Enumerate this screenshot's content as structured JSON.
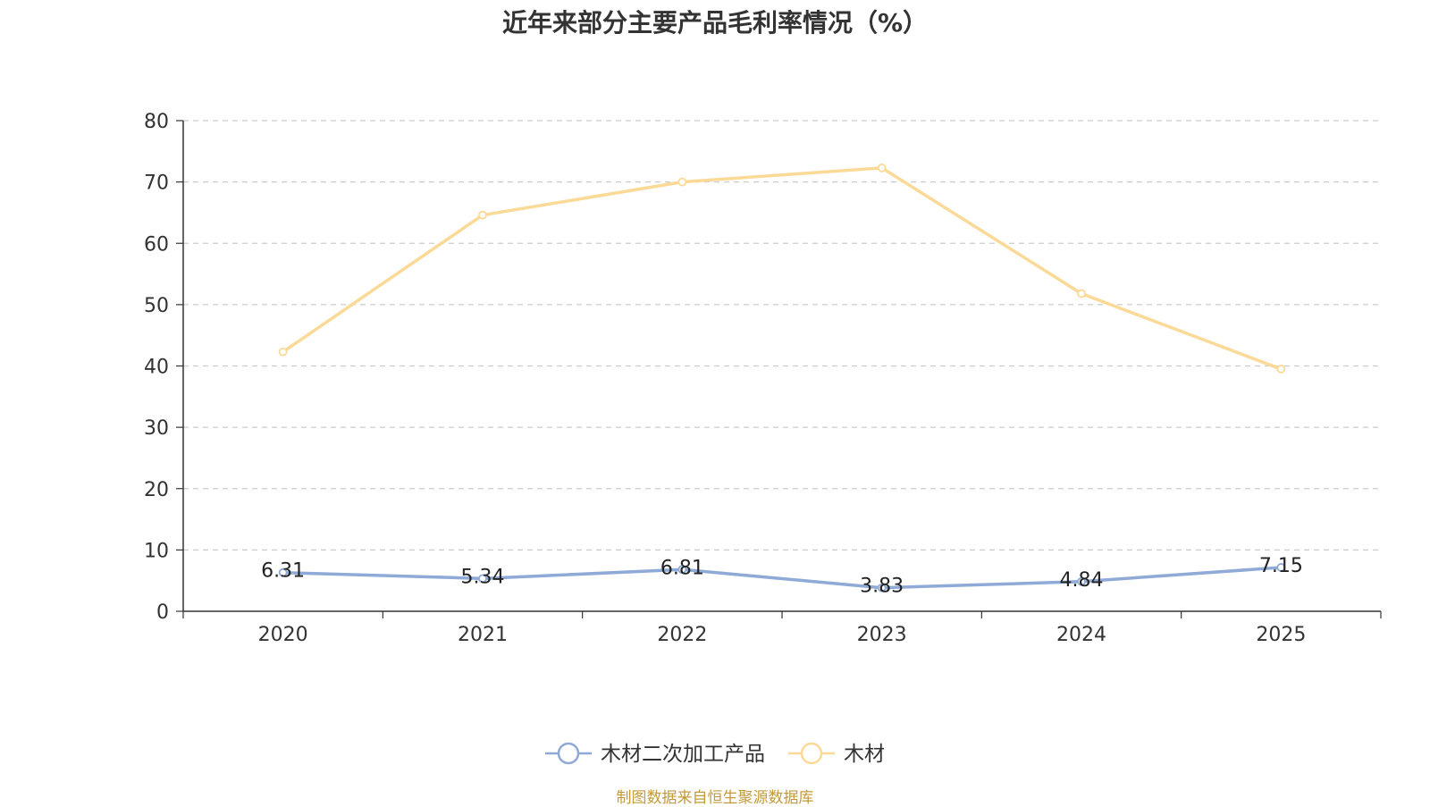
{
  "chart_data": {
    "type": "line",
    "title": "近年来部分主要产品毛利率情况（%）",
    "categories": [
      "2020",
      "2021",
      "2022",
      "2023",
      "2024",
      "2025"
    ],
    "ylim": [
      0,
      80
    ],
    "yticks": [
      0,
      10,
      20,
      30,
      40,
      50,
      60,
      70,
      80
    ],
    "grid": true,
    "legend_position": "bottom-center",
    "series": [
      {
        "name": "木材二次加工产品",
        "values": [
          6.31,
          5.34,
          6.81,
          3.83,
          4.84,
          7.15
        ],
        "labels": [
          "6.31",
          "5.34",
          "6.81",
          "3.83",
          "4.84",
          "7.15"
        ],
        "color": "#8faad6"
      },
      {
        "name": "木材",
        "values": [
          42.3,
          64.6,
          70.0,
          72.3,
          51.8,
          39.5
        ],
        "color": "#fbd997"
      }
    ],
    "source": "制图数据来自恒生聚源数据库"
  }
}
